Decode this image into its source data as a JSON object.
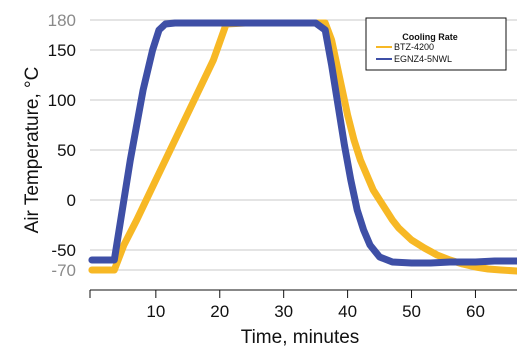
{
  "chart_data": {
    "type": "line",
    "title": "",
    "xlabel": "Time, minutes",
    "ylabel": "Air Temperature, °C",
    "xlim": [
      -0.3,
      66.5
    ],
    "ylim": [
      -90,
      190
    ],
    "x_ticks": [
      10,
      20,
      30,
      40,
      50,
      60
    ],
    "y_ticks": [
      {
        "value": 180,
        "label": "180",
        "color": "#8a8a8a"
      },
      {
        "value": 150,
        "label": "150",
        "color": "#111111"
      },
      {
        "value": 100,
        "label": "100",
        "color": "#111111"
      },
      {
        "value": 50,
        "label": "50",
        "color": "#111111"
      },
      {
        "value": 0,
        "label": "0",
        "color": "#111111"
      },
      {
        "value": -50,
        "label": "-50",
        "color": "#111111"
      },
      {
        "value": -70,
        "label": "-70",
        "color": "#8a8a8a"
      }
    ],
    "grid": true,
    "legend": {
      "title": "Cooling Rate",
      "position": "top-right"
    },
    "series": [
      {
        "name": "BTZ-4200",
        "color": "#f7b825",
        "x": [
          0,
          2,
          3.5,
          5,
          7,
          10,
          13,
          16,
          19,
          21,
          24,
          28,
          32,
          35,
          36.5,
          37.5,
          39,
          40,
          41,
          42,
          43,
          44,
          45,
          46,
          47,
          48,
          50,
          52,
          54,
          56,
          58,
          60,
          62,
          64,
          66.5
        ],
        "y": [
          -70,
          -70,
          -70,
          -45,
          -20,
          20,
          60,
          100,
          140,
          176,
          177,
          177,
          177,
          177,
          177,
          160,
          115,
          85,
          60,
          40,
          25,
          10,
          0,
          -10,
          -20,
          -28,
          -40,
          -48,
          -55,
          -60,
          -64,
          -67,
          -69,
          -70,
          -71
        ]
      },
      {
        "name": "EGNZ4-5NWL",
        "color": "#3e4fa6",
        "x": [
          0,
          2,
          3.5,
          4.5,
          6,
          8,
          9.5,
          10.5,
          11.5,
          13,
          16,
          20,
          25,
          30,
          35,
          36.5,
          37.5,
          38.5,
          39.5,
          40.5,
          41.5,
          42.5,
          43.5,
          45,
          47,
          50,
          53,
          56,
          60,
          63,
          66.5
        ],
        "y": [
          -60,
          -60,
          -60,
          -20,
          40,
          110,
          150,
          170,
          176,
          177,
          177,
          177,
          177,
          177,
          177,
          170,
          135,
          95,
          55,
          20,
          -10,
          -30,
          -45,
          -57,
          -62,
          -63,
          -63,
          -62,
          -62,
          -61,
          -61
        ]
      }
    ]
  }
}
